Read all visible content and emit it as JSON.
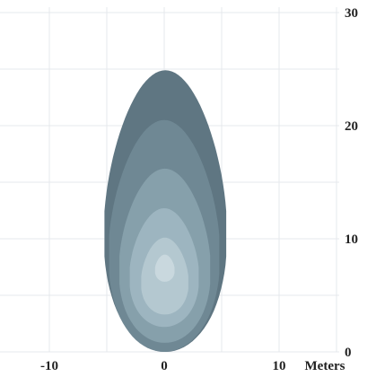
{
  "chart_data": {
    "type": "contour",
    "xlabel": "Meters",
    "x_tick_labels": [
      "-10",
      "0",
      "10"
    ],
    "y_tick_labels": [
      "0",
      "10",
      "20",
      "30"
    ],
    "xlim": [
      -15,
      15
    ],
    "ylim": [
      0,
      30
    ],
    "grid": true,
    "series": [
      {
        "level": 1,
        "color": "#5f7682",
        "extent_x": [
          -5.2,
          5.4
        ],
        "extent_y": [
          0,
          24.9
        ]
      },
      {
        "level": 2,
        "color": "#6f8894",
        "extent_x": [
          -4.8,
          4.8
        ],
        "extent_y": [
          0,
          20.5
        ]
      },
      {
        "level": 3,
        "color": "#86a0ab",
        "extent_x": [
          -3.9,
          4.0
        ],
        "extent_y": [
          0.8,
          16.2
        ]
      },
      {
        "level": 4,
        "color": "#9db5c0",
        "extent_x": [
          -3.0,
          3.0
        ],
        "extent_y": [
          2.2,
          12.7
        ]
      },
      {
        "level": 5,
        "color": "#b4c8d0",
        "extent_x": [
          -2.0,
          2.1
        ],
        "extent_y": [
          3.3,
          10.1
        ]
      },
      {
        "level": 6,
        "color": "#c9d8de",
        "extent_x": [
          -0.8,
          0.9
        ],
        "extent_y": [
          6.2,
          8.6
        ]
      }
    ]
  }
}
